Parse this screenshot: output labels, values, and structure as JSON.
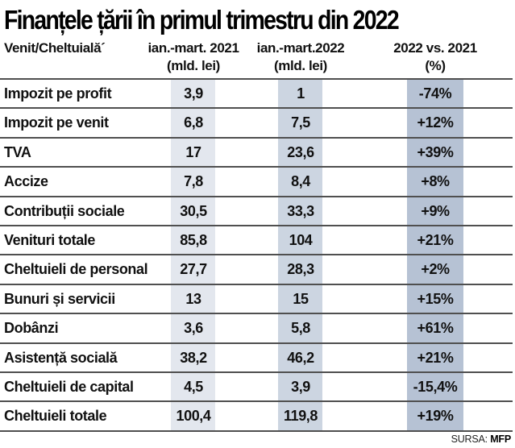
{
  "title": "Finanțele țării în primul trimestru din 2022",
  "header": {
    "col0": "Venit/Cheltuială´",
    "col1_line1": "ian.-mart. 2021",
    "col1_line2": "(mld. lei)",
    "col2_line1": "ian.-mart.2022",
    "col2_line2": "(mld. lei)",
    "col3_line1": "2022 vs. 2021",
    "col3_line2": "(%)"
  },
  "source": {
    "prefix": "SURSA:",
    "name": "MFP"
  },
  "colors": {
    "band_2021": "#e3e7ee",
    "band_2022": "#ccd5e1",
    "band_pct": "#b6c2d4",
    "rule": "#4f4f4f"
  },
  "chart_data": {
    "type": "table",
    "title": "Finanțele țării în primul trimestru din 2022",
    "columns": [
      "Venit/Cheltuială",
      "ian.-mart. 2021 (mld. lei)",
      "ian.-mart.2022 (mld. lei)",
      "2022 vs. 2021 (%)"
    ],
    "rows": [
      [
        "Impozit pe profit",
        "3,9",
        "1",
        "-74%"
      ],
      [
        "Impozit pe venit",
        "6,8",
        "7,5",
        "+12%"
      ],
      [
        "TVA",
        "17",
        "23,6",
        "+39%"
      ],
      [
        "Accize",
        "7,8",
        "8,4",
        "+8%"
      ],
      [
        "Contribuții sociale",
        "30,5",
        "33,3",
        "+9%"
      ],
      [
        "Venituri totale",
        "85,8",
        "104",
        "+21%"
      ],
      [
        "Cheltuieli de personal",
        "27,7",
        "28,3",
        "+2%"
      ],
      [
        "Bunuri și servicii",
        "13",
        "15",
        "+15%"
      ],
      [
        "Dobânzi",
        "3,6",
        "5,8",
        "+61%"
      ],
      [
        "Asistență socială",
        "38,2",
        "46,2",
        "+21%"
      ],
      [
        "Cheltuieli de capital",
        "4,5",
        "3,9",
        "-15,4%"
      ],
      [
        "Cheltuieli totale",
        "100,4",
        "119,8",
        "+19%"
      ]
    ],
    "source": "SURSA: MFP"
  }
}
